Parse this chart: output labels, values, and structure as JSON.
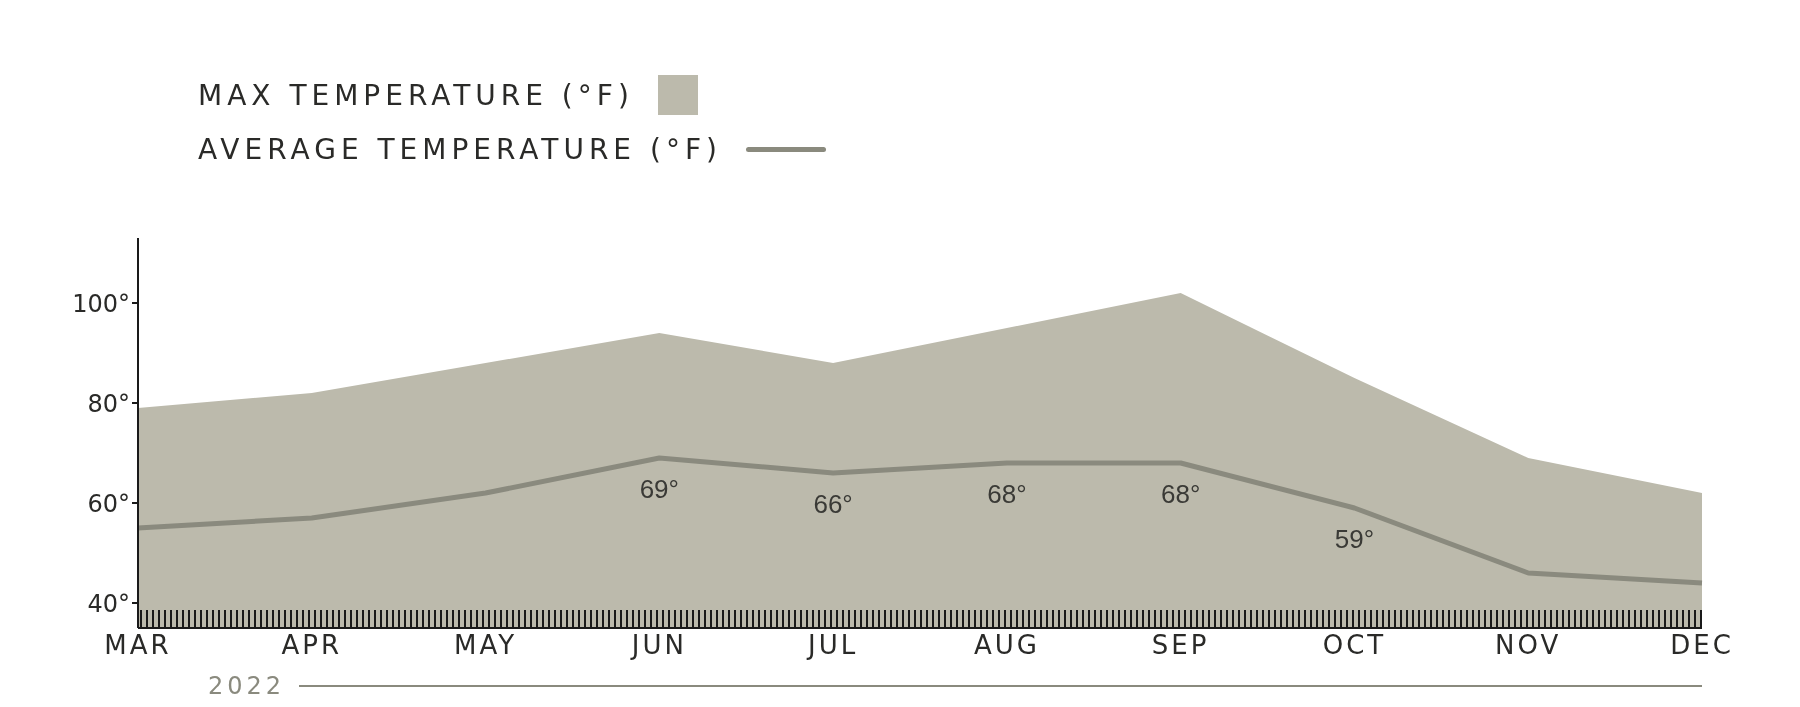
{
  "chart_data": {
    "type": "area",
    "categories": [
      "MAR",
      "APR",
      "MAY",
      "JUN",
      "JUL",
      "AUG",
      "SEP",
      "OCT",
      "NOV",
      "DEC"
    ],
    "series": [
      {
        "name": "MAX TEMPERATURE (°F)",
        "color": "#bcbaac",
        "values": [
          79,
          82,
          88,
          94,
          88,
          95,
          102,
          85,
          69,
          62
        ]
      },
      {
        "name": "AVERAGE TEMPERATURE (°F)",
        "type": "line",
        "color": "#8a8a7e",
        "values": [
          55,
          57,
          62,
          69,
          66,
          68,
          68,
          59,
          46,
          44
        ],
        "value_labels": [
          null,
          null,
          null,
          "69°",
          "66°",
          "68°",
          "68°",
          "59°",
          null,
          null
        ]
      }
    ],
    "ylim": [
      35,
      113
    ],
    "yticks": [
      {
        "value": 40,
        "label": "40°"
      },
      {
        "value": 60,
        "label": "60°"
      },
      {
        "value": 80,
        "label": "80°"
      },
      {
        "value": 100,
        "label": "100°"
      }
    ],
    "legend": "top left",
    "marker": "none",
    "annotations": [
      "2022"
    ]
  }
}
